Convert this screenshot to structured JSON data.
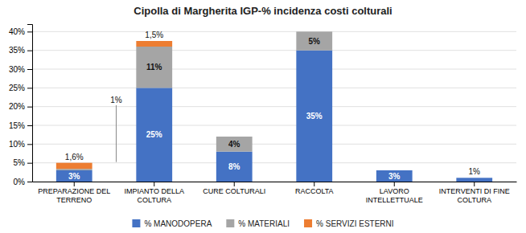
{
  "chart_data": {
    "type": "bar",
    "stacked": true,
    "title": "Cipolla di Margherita IGP-% incidenza costi colturali",
    "categories": [
      "PREPARAZIONE DEL\nTERRENO",
      "IMPIANTO DELLA\nCOLTURA",
      "CURE COLTURALI",
      "RACCOLTA",
      "LAVORO\nINTELLETTUALE",
      "INTERVENTI DI FINE\nCOLTURA"
    ],
    "series": [
      {
        "name": "% MANODOPERA",
        "color": "#4472C4",
        "values": [
          3,
          25,
          8,
          35,
          3,
          1
        ],
        "value_labels": [
          "3%",
          "25%",
          "8%",
          "35%",
          "3%",
          "1%"
        ]
      },
      {
        "name": "% MATERIALI",
        "color": "#A5A5A5",
        "values": [
          0.4,
          11,
          4,
          5,
          0,
          0
        ],
        "value_labels": [
          null,
          "11%",
          "4%",
          "5%",
          null,
          null
        ]
      },
      {
        "name": "% SERVIZI ESTERNI",
        "color": "#ED7D31",
        "values": [
          1.6,
          1.5,
          0,
          0,
          0,
          0
        ],
        "value_labels": [
          "1,6%",
          "1,5%",
          null,
          null,
          null,
          null
        ]
      }
    ],
    "data_labels": true,
    "ylim": [
      0,
      42
    ],
    "yticks": [
      {
        "value": 0,
        "label": "0%"
      },
      {
        "value": 5,
        "label": "5%"
      },
      {
        "value": 10,
        "label": "10%"
      },
      {
        "value": 15,
        "label": "15%"
      },
      {
        "value": 20,
        "label": "20%"
      },
      {
        "value": 25,
        "label": "25%"
      },
      {
        "value": 30,
        "label": "30%"
      },
      {
        "value": 35,
        "label": "35%"
      },
      {
        "value": 40,
        "label": "40%"
      }
    ],
    "grid": true,
    "legend": "bottom",
    "annotations": [
      {
        "text": "1%",
        "category": "PREPARAZIONE DEL\nTERRENO"
      }
    ]
  }
}
